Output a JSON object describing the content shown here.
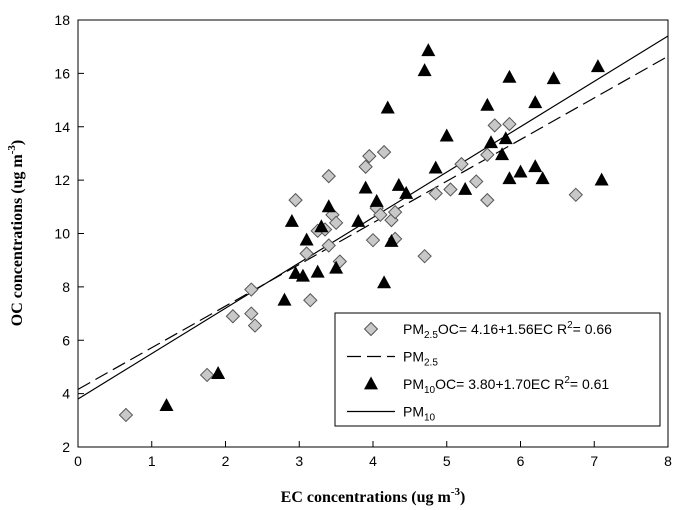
{
  "chart_data": {
    "type": "scatter",
    "xlabel": "EC concentrations (ug  m",
    "xlabel_sup": "-3",
    "xlabel_tail": ")",
    "ylabel": "OC concentrations (ug  m",
    "ylabel_sup": "-3",
    "ylabel_tail": ")",
    "xlim": [
      0,
      8
    ],
    "ylim": [
      2,
      18
    ],
    "xticks": [
      0,
      1,
      2,
      3,
      4,
      5,
      6,
      7,
      8
    ],
    "yticks": [
      2,
      4,
      6,
      8,
      10,
      12,
      14,
      16,
      18
    ],
    "legend_position": "bottom-right",
    "series": [
      {
        "name": "PM2.5",
        "marker": "diamond",
        "color": "#c8c8c8",
        "legend": {
          "prefix": "PM",
          "sub": "2.5",
          "equation": "OC= 4.16+1.56EC R",
          "sup": "2",
          "suffix": "= 0.66"
        },
        "points": [
          [
            0.65,
            3.2
          ],
          [
            1.75,
            4.7
          ],
          [
            2.1,
            6.9
          ],
          [
            2.35,
            7.9
          ],
          [
            2.35,
            7.0
          ],
          [
            2.4,
            6.55
          ],
          [
            2.95,
            11.25
          ],
          [
            3.1,
            9.25
          ],
          [
            3.15,
            7.5
          ],
          [
            3.25,
            10.1
          ],
          [
            3.35,
            10.15
          ],
          [
            3.4,
            9.55
          ],
          [
            3.4,
            12.15
          ],
          [
            3.45,
            10.7
          ],
          [
            3.5,
            10.4
          ],
          [
            3.55,
            8.95
          ],
          [
            3.9,
            12.5
          ],
          [
            3.95,
            12.9
          ],
          [
            4.0,
            9.75
          ],
          [
            4.05,
            10.95
          ],
          [
            4.1,
            10.7
          ],
          [
            4.15,
            13.05
          ],
          [
            4.25,
            10.5
          ],
          [
            4.3,
            9.8
          ],
          [
            4.3,
            10.8
          ],
          [
            4.7,
            9.15
          ],
          [
            4.85,
            11.5
          ],
          [
            5.05,
            11.65
          ],
          [
            5.2,
            12.6
          ],
          [
            5.4,
            11.95
          ],
          [
            5.55,
            12.95
          ],
          [
            5.55,
            11.25
          ],
          [
            5.65,
            14.05
          ],
          [
            5.85,
            14.1
          ],
          [
            6.75,
            11.45
          ]
        ]
      },
      {
        "name": "PM2.5 fit",
        "line_style": "dashed",
        "legend": {
          "prefix": "PM",
          "sub": "2.5"
        },
        "intercept": 4.16,
        "slope": 1.56
      },
      {
        "name": "PM10",
        "marker": "triangle",
        "color": "#000000",
        "legend": {
          "prefix": "PM",
          "sub": "10",
          "equation": "OC= 3.80+1.70EC R",
          "sup": "2",
          "suffix": "= 0.61"
        },
        "points": [
          [
            1.2,
            3.55
          ],
          [
            1.9,
            4.75
          ],
          [
            2.8,
            7.5
          ],
          [
            2.9,
            10.45
          ],
          [
            2.95,
            8.5
          ],
          [
            3.05,
            8.4
          ],
          [
            3.1,
            9.75
          ],
          [
            3.25,
            8.55
          ],
          [
            3.3,
            10.25
          ],
          [
            3.4,
            11.0
          ],
          [
            3.5,
            8.7
          ],
          [
            3.8,
            10.45
          ],
          [
            3.9,
            11.7
          ],
          [
            4.05,
            11.2
          ],
          [
            4.15,
            8.15
          ],
          [
            4.2,
            14.7
          ],
          [
            4.25,
            9.7
          ],
          [
            4.35,
            11.8
          ],
          [
            4.45,
            11.5
          ],
          [
            4.7,
            16.1
          ],
          [
            4.75,
            16.85
          ],
          [
            4.85,
            12.45
          ],
          [
            5.0,
            13.65
          ],
          [
            5.25,
            11.65
          ],
          [
            5.55,
            14.8
          ],
          [
            5.6,
            13.4
          ],
          [
            5.75,
            12.95
          ],
          [
            5.8,
            13.55
          ],
          [
            5.85,
            12.05
          ],
          [
            5.85,
            15.85
          ],
          [
            6.0,
            12.3
          ],
          [
            6.2,
            12.5
          ],
          [
            6.2,
            14.9
          ],
          [
            6.3,
            12.05
          ],
          [
            6.45,
            15.8
          ],
          [
            7.05,
            16.25
          ],
          [
            7.1,
            12.0
          ]
        ]
      },
      {
        "name": "PM10 fit",
        "line_style": "solid",
        "legend": {
          "prefix": "PM",
          "sub": "10"
        },
        "intercept": 3.8,
        "slope": 1.7
      }
    ]
  }
}
